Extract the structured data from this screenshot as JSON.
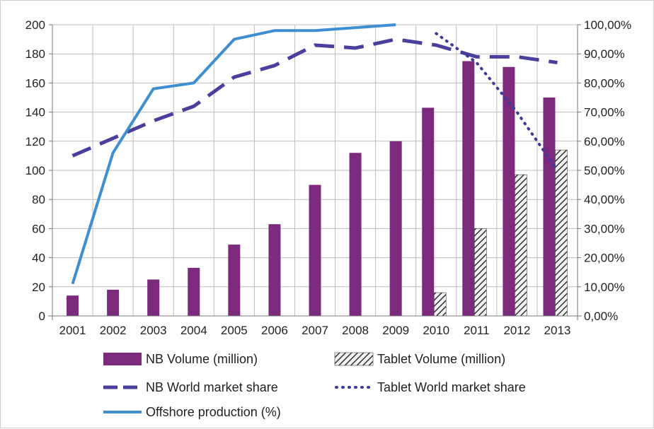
{
  "chart_data": {
    "type": "bar",
    "categories": [
      "2001",
      "2002",
      "2003",
      "2004",
      "2005",
      "2006",
      "2007",
      "2008",
      "2009",
      "2010",
      "2011",
      "2012",
      "2013"
    ],
    "ylim": [
      0,
      200
    ],
    "y2lim": [
      0,
      100
    ],
    "y_ticks": [
      "0",
      "20",
      "40",
      "60",
      "80",
      "100",
      "120",
      "140",
      "160",
      "180",
      "200"
    ],
    "y2_ticks": [
      "0,00%",
      "10,00%",
      "20,00%",
      "30,00%",
      "40,00%",
      "50,00%",
      "60,00%",
      "70,00%",
      "80,00%",
      "90,00%",
      "100,00%"
    ],
    "grid": true,
    "legend_position": "bottom",
    "series": [
      {
        "name": "NB Volume (million)",
        "kind": "bar",
        "axis": "left",
        "color": "#7b2a7d",
        "values": [
          14,
          18,
          25,
          33,
          49,
          63,
          90,
          112,
          120,
          143,
          175,
          171,
          150
        ]
      },
      {
        "name": "Tablet Volume (million)",
        "kind": "bar-hatched",
        "axis": "left",
        "color": "#555555",
        "values": [
          null,
          null,
          null,
          null,
          null,
          null,
          null,
          null,
          null,
          16,
          60,
          97,
          114
        ]
      },
      {
        "name": "NB World market share",
        "kind": "line-dashed",
        "axis": "right",
        "color": "#4b3f9e",
        "values": [
          55,
          61,
          67,
          72,
          82,
          86,
          93,
          92,
          95,
          93,
          89,
          89,
          87
        ]
      },
      {
        "name": "Tablet World market share",
        "kind": "line-dotted",
        "axis": "right",
        "color": "#3c3a9a",
        "values": [
          null,
          null,
          null,
          null,
          null,
          null,
          null,
          null,
          null,
          97,
          87,
          70,
          50
        ]
      },
      {
        "name": "Offshore production  (%)",
        "kind": "line-solid",
        "axis": "right",
        "color": "#3d8fd1",
        "values": [
          11,
          56,
          78,
          80,
          95,
          98,
          98,
          99,
          100,
          null,
          null,
          null,
          null
        ]
      }
    ]
  }
}
